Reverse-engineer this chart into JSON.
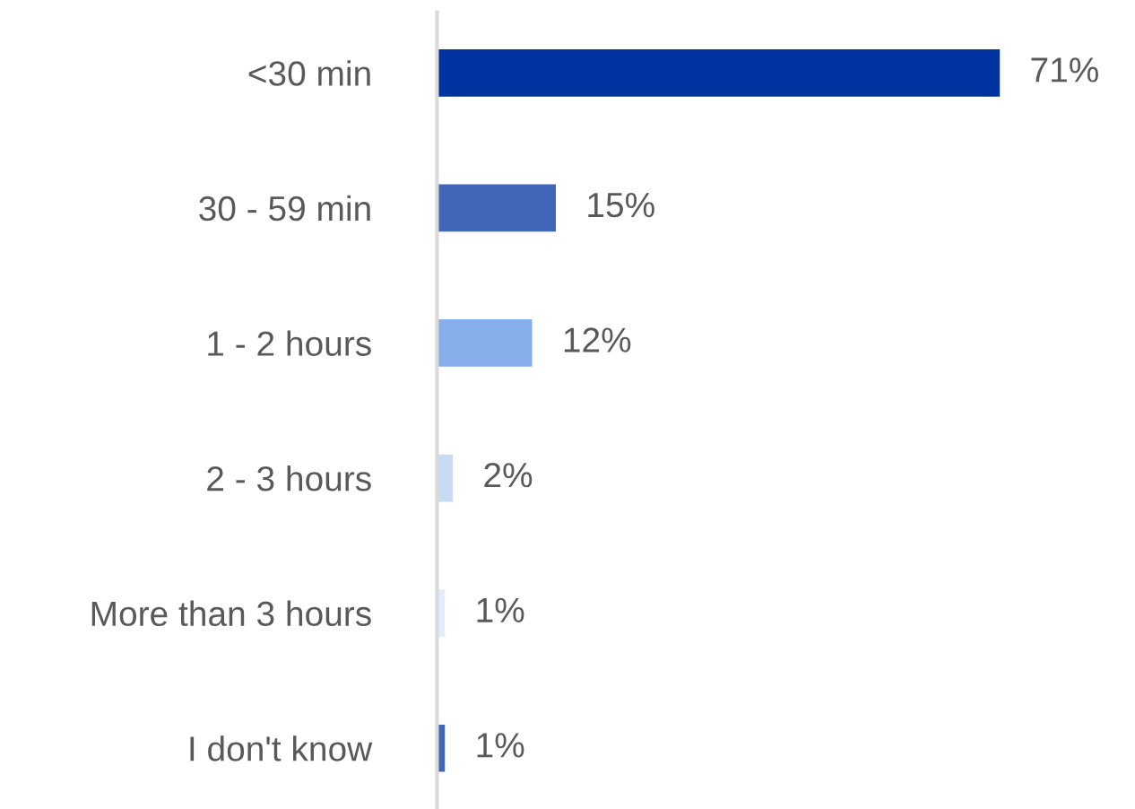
{
  "chart_data": {
    "type": "bar",
    "orientation": "horizontal",
    "categories": [
      "<30 min",
      "30 - 59 min",
      "1 - 2 hours",
      "2 - 3 hours",
      "More than 3 hours",
      "I don't know"
    ],
    "values": [
      71,
      15,
      12,
      2,
      1,
      1
    ],
    "colors": [
      "#0033a0",
      "#4066b8",
      "#86aeea",
      "#c9daf5",
      "#e3ecfa",
      "#4066b8"
    ],
    "value_labels": [
      "71%",
      "15%",
      "12%",
      "2%",
      "1%",
      "1%"
    ],
    "tick_labels": "y",
    "grid": false,
    "legend": false
  }
}
